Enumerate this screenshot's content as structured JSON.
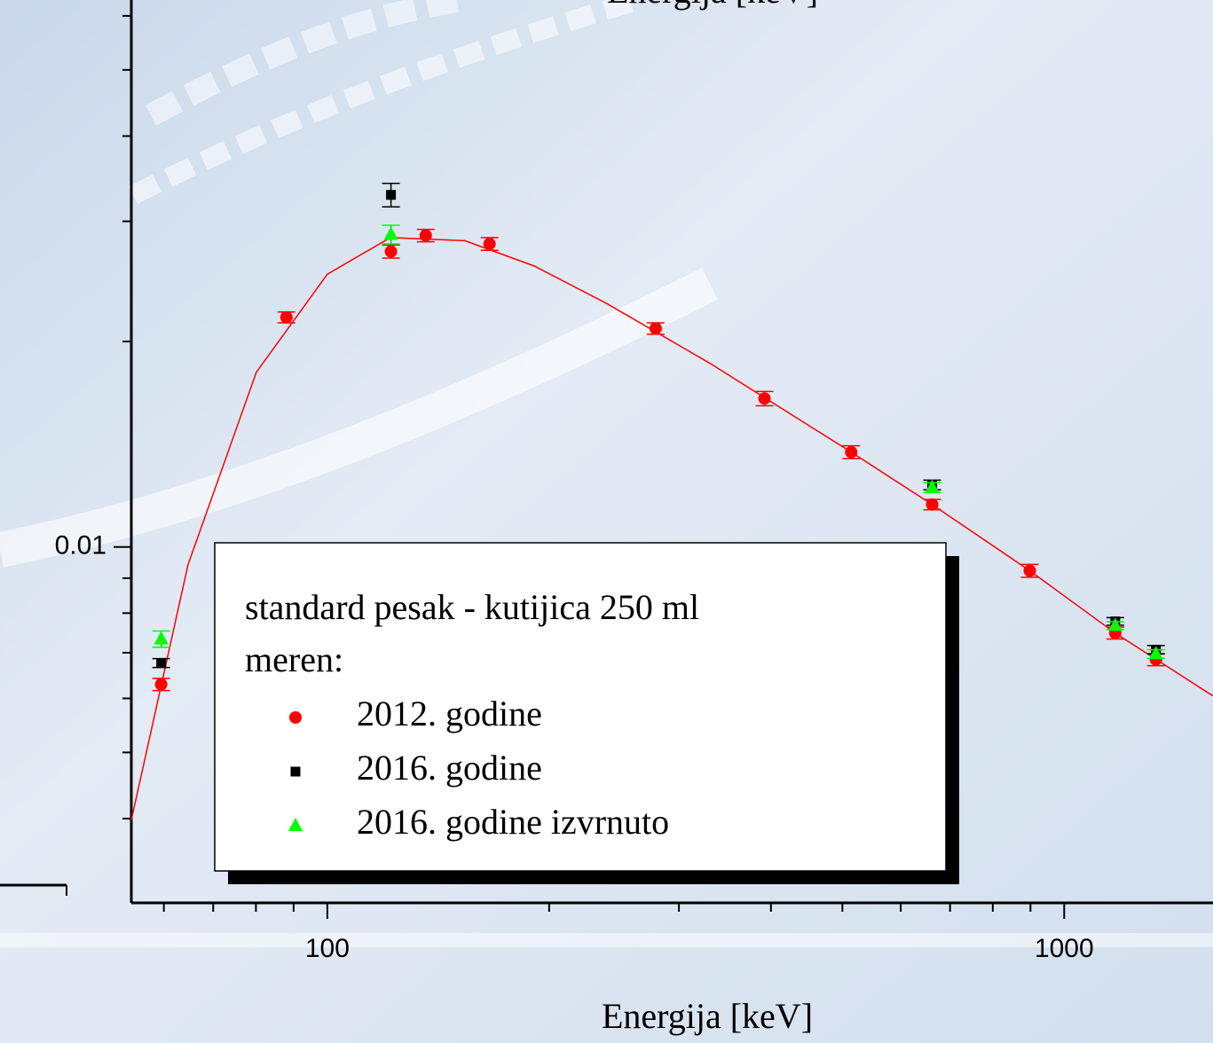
{
  "chart_data": {
    "type": "scatter",
    "top_text": "Energija [keV]",
    "x_label": "Energija [keV]",
    "x_log": true,
    "y_log": true,
    "xlim": [
      54.2,
      1592
    ],
    "ylim": [
      0.00301,
      0.0633
    ],
    "xticks": [
      100,
      1000
    ],
    "xminor": [
      60,
      70,
      80,
      90,
      200,
      300,
      400,
      500,
      600,
      700,
      800,
      900
    ],
    "yticks": [
      0.01
    ],
    "yminor": [
      0.004,
      0.005,
      0.006,
      0.007,
      0.008,
      0.009,
      0.02,
      0.03,
      0.04,
      0.05,
      0.06
    ],
    "legend": {
      "title": "standard pesak - kutijica 250 ml",
      "subtitle": "meren:"
    },
    "series": [
      {
        "name": "2012. godine",
        "color": "#ff0000",
        "marker": "circle",
        "x": [
          59.5,
          88,
          122,
          136,
          166,
          279,
          392,
          514,
          662,
          898,
          1173,
          1332
        ],
        "values": [
          0.00629,
          0.0217,
          0.0271,
          0.0286,
          0.0278,
          0.0209,
          0.0165,
          0.01377,
          0.01154,
          0.00923,
          0.00748,
          0.00684
        ],
        "errors": [
          0.00013,
          0.0004,
          0.0006,
          0.0006,
          0.0006,
          0.0004,
          0.0004,
          0.0003,
          0.0002,
          0.0002,
          0.00015,
          0.00014
        ]
      },
      {
        "name": "2016. godine",
        "color": "#000000",
        "marker": "square",
        "x": [
          59.5,
          122,
          662,
          1173,
          1332
        ],
        "values": [
          0.00676,
          0.0328,
          0.01233,
          0.00778,
          0.00707
        ],
        "errors": [
          0.0001,
          0.0013,
          0.0002,
          0.0001,
          0.0001
        ]
      },
      {
        "name": "2016. godine izvrnuto",
        "color": "#00ff00",
        "marker": "triangle",
        "x": [
          59.5,
          122,
          662,
          1173,
          1332
        ],
        "values": [
          0.00733,
          0.0287,
          0.01222,
          0.00767,
          0.00697
        ],
        "errors": [
          0.0002,
          0.0009,
          0.0002,
          0.0001,
          0.0001
        ]
      }
    ],
    "fit": {
      "color": "#ff0000",
      "x": [
        54.2,
        64.7,
        80.1,
        100,
        121.8,
        153.7,
        191,
        240,
        330,
        514,
        662,
        898,
        1173,
        1592
      ],
      "values": [
        0.00398,
        0.00942,
        0.01803,
        0.0251,
        0.0284,
        0.0281,
        0.0258,
        0.0227,
        0.0186,
        0.01377,
        0.01154,
        0.00923,
        0.00748,
        0.00605
      ]
    }
  }
}
